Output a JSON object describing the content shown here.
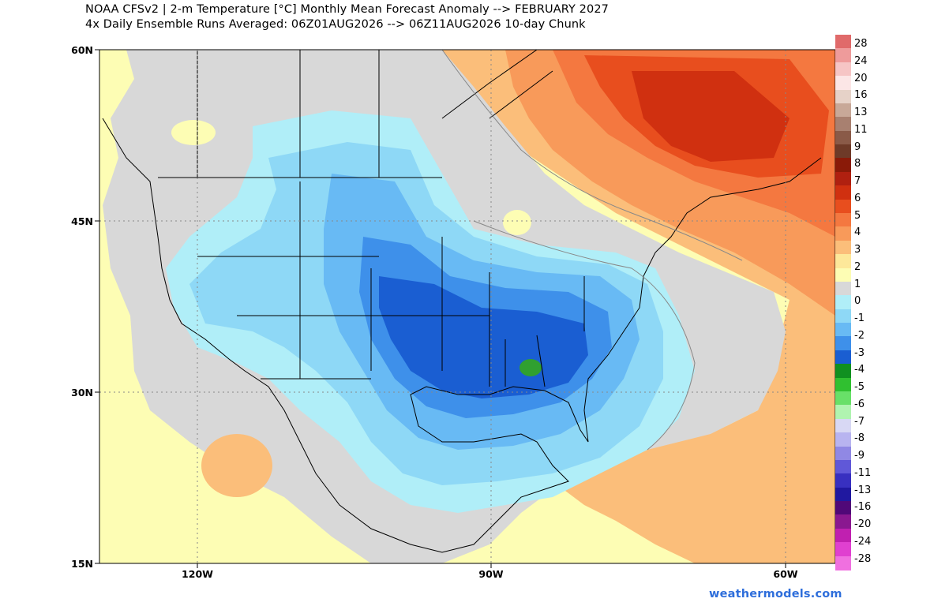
{
  "title": {
    "line1": "NOAA CFSv2 | 2-m Temperature [°C] Monthly Mean Forecast Anomaly --> FEBRUARY 2027",
    "line2": "4x Daily Ensemble Runs Averaged: 06Z01AUG2026 --> 06Z11AUG2026 10-day Chunk"
  },
  "axes": {
    "lat_labels": [
      "60N",
      "45N",
      "30N",
      "15N"
    ],
    "lon_labels": [
      "120W",
      "90W",
      "60W"
    ]
  },
  "colorbar": {
    "labels": [
      "28",
      "24",
      "20",
      "16",
      "13",
      "11",
      "9",
      "8",
      "7",
      "6",
      "5",
      "4",
      "3",
      "2",
      "1",
      "0",
      "-1",
      "-2",
      "-3",
      "-4",
      "-5",
      "-6",
      "-7",
      "-8",
      "-9",
      "-11",
      "-13",
      "-16",
      "-20",
      "-24",
      "-28"
    ],
    "colors": [
      "#e06a6a",
      "#ee9b9b",
      "#f6c5c5",
      "#fce6e6",
      "#e6d2c8",
      "#c8a898",
      "#a88070",
      "#8a5a48",
      "#6e3a28",
      "#8a1a08",
      "#b02010",
      "#d03010",
      "#e84e1e",
      "#f47840",
      "#f89a5a",
      "#fbbe7a",
      "#fde89a",
      "#fdfdb4",
      "#d8d8d8",
      "#b0eef8",
      "#8ed8f6",
      "#68baf4",
      "#3e90ea",
      "#1a5ed2",
      "#109020",
      "#30c030",
      "#68e068",
      "#b0f4b0",
      "#d8d8f4",
      "#b8b4f0",
      "#9088e4",
      "#6058d8",
      "#3830c0",
      "#2018a0",
      "#500878",
      "#8a1890",
      "#c020b0",
      "#e040d0",
      "#f070e0"
    ],
    "legend_colors_order_note": ""
  },
  "credit": "weathermodels.com",
  "colors": {
    "gray_zero": "#d8d8d8",
    "yellow_pos1": "#fdfdb4",
    "orange": "#f89a5a",
    "red": "#d03010",
    "light_blue": "#b0eef8",
    "mid_blue": "#68baf4",
    "dark_blue": "#1a5ed2",
    "green": "#30a030"
  }
}
